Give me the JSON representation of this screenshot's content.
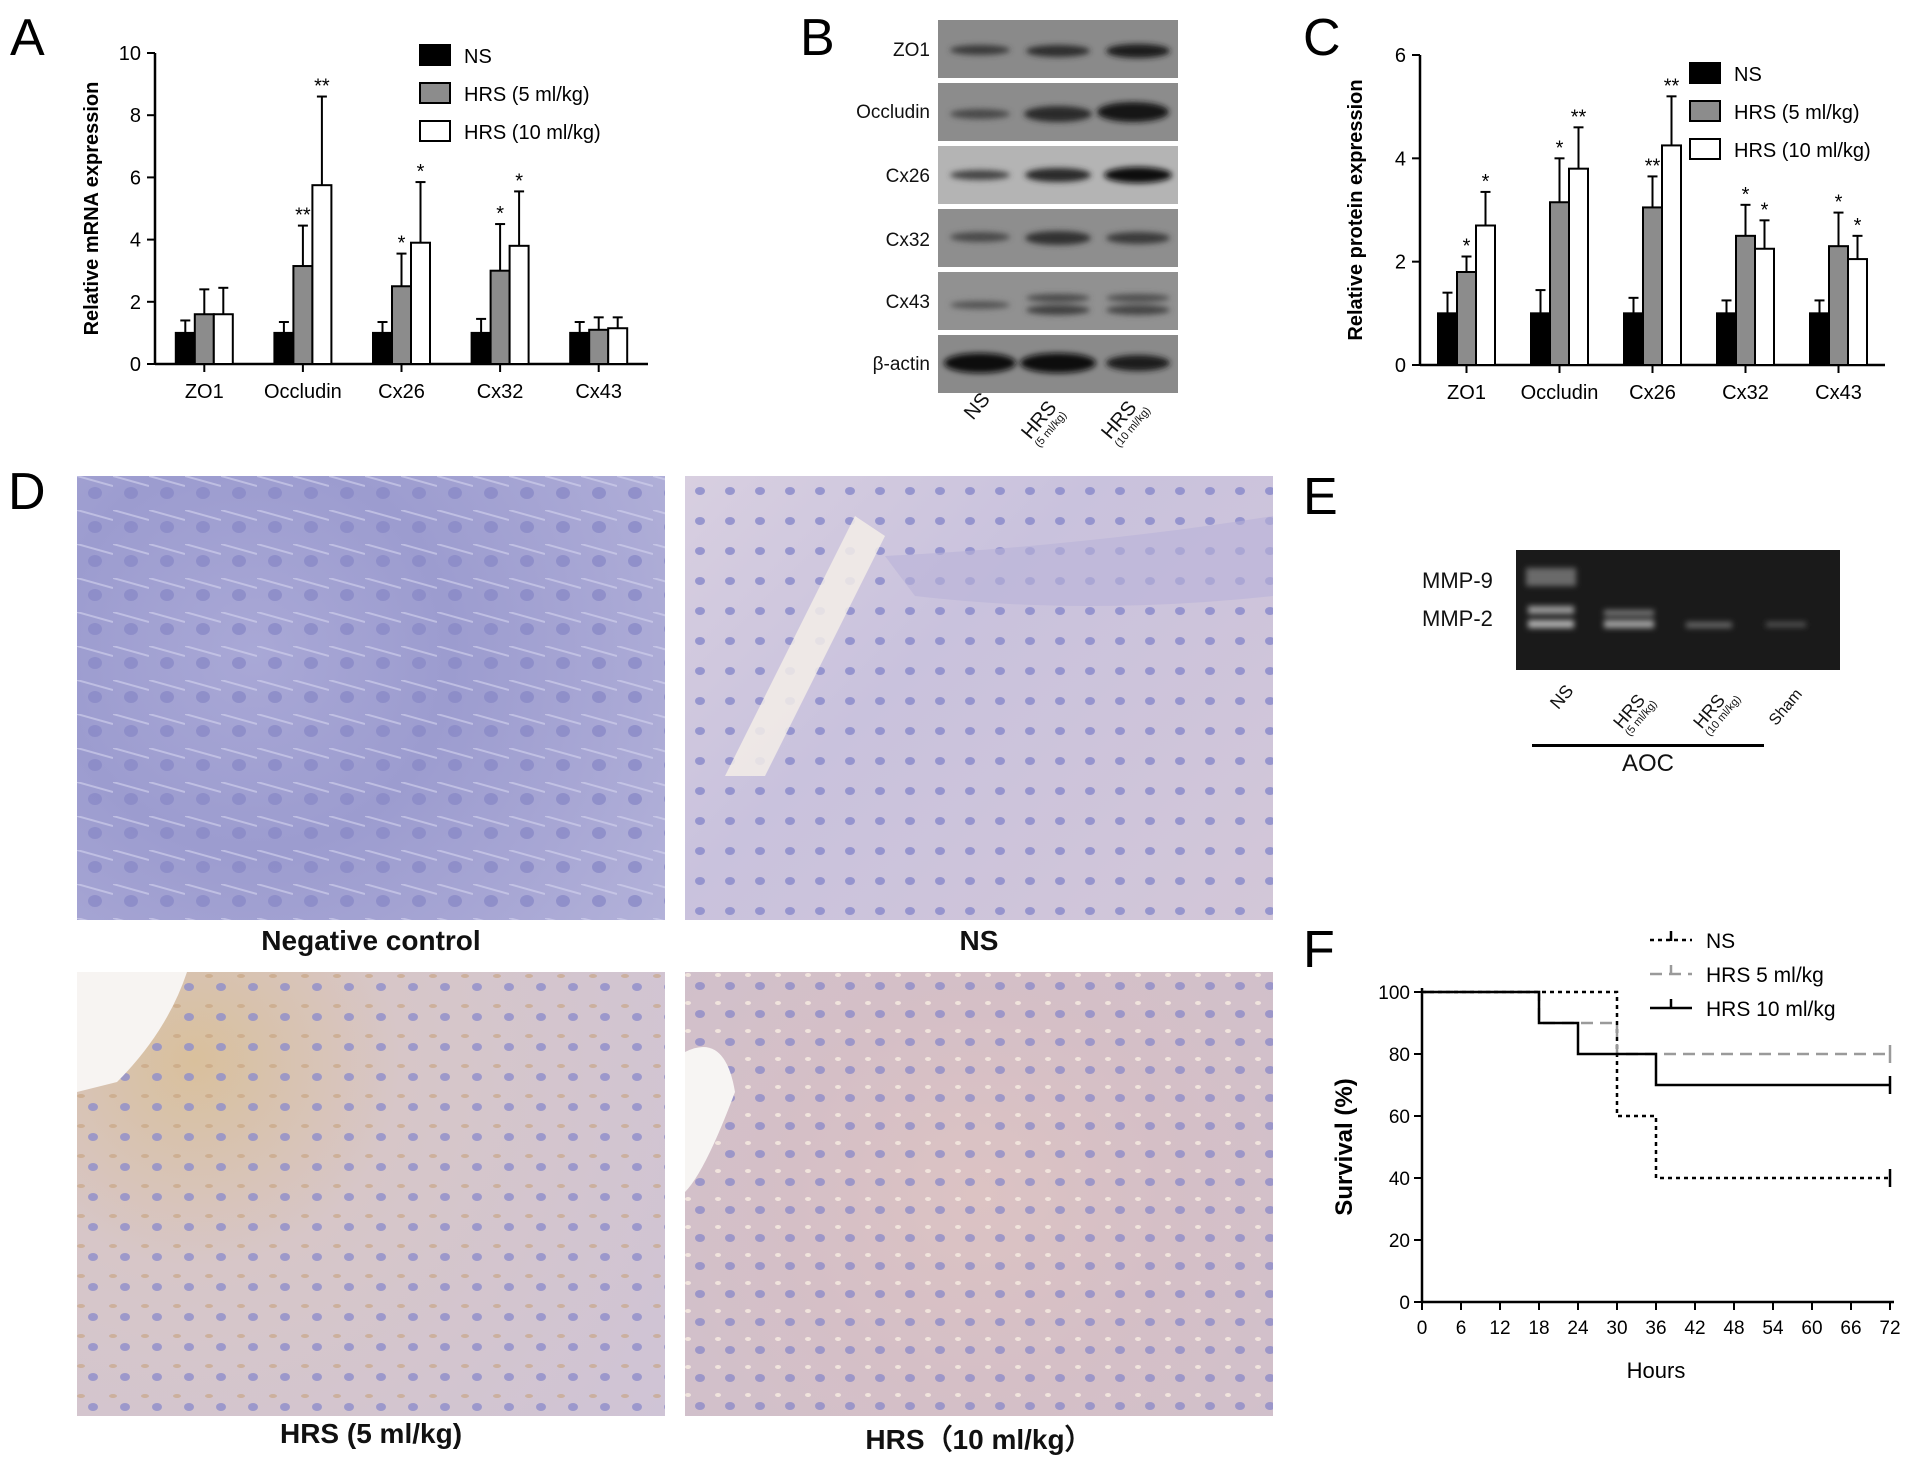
{
  "panels": {
    "a": "A",
    "b": "B",
    "c": "C",
    "d": "D",
    "e": "E",
    "f": "F"
  },
  "chart_data": [
    {
      "panel": "A",
      "type": "bar",
      "ylabel": "Relative mRNA expression",
      "xlabel": "",
      "ylim": [
        0,
        10
      ],
      "yticks": [
        "0",
        "2",
        "4",
        "6",
        "8",
        "10"
      ],
      "categories": [
        "ZO1",
        "Occludin",
        "Cx26",
        "Cx32",
        "Cx43"
      ],
      "legend_position": "top-right",
      "series": [
        {
          "name": "NS",
          "color": "#000000",
          "values": [
            1.0,
            1.0,
            1.0,
            1.0,
            1.0
          ],
          "errors": [
            0.4,
            0.35,
            0.35,
            0.45,
            0.35
          ],
          "sig": [
            "",
            "",
            "",
            "",
            ""
          ]
        },
        {
          "name": "HRS (5 ml/kg)",
          "color": "#8c8c8c",
          "values": [
            1.6,
            3.15,
            2.5,
            3.0,
            1.1
          ],
          "errors": [
            0.8,
            1.3,
            1.05,
            1.5,
            0.4
          ],
          "sig": [
            "",
            "**",
            "*",
            "*",
            ""
          ]
        },
        {
          "name": "HRS (10 ml/kg)",
          "color": "#ffffff",
          "values": [
            1.6,
            5.75,
            3.9,
            3.8,
            1.15
          ],
          "errors": [
            0.85,
            2.85,
            1.95,
            1.75,
            0.35
          ],
          "sig": [
            "",
            "**",
            "*",
            "*",
            ""
          ]
        }
      ]
    },
    {
      "panel": "C",
      "type": "bar",
      "ylabel": "Relative protein expression",
      "xlabel": "",
      "ylim": [
        0,
        6
      ],
      "yticks": [
        "0",
        "2",
        "4",
        "6"
      ],
      "categories": [
        "ZO1",
        "Occludin",
        "Cx26",
        "Cx32",
        "Cx43"
      ],
      "legend_position": "top-right",
      "series": [
        {
          "name": "NS",
          "color": "#000000",
          "values": [
            1.0,
            1.0,
            1.0,
            1.0,
            1.0
          ],
          "errors": [
            0.4,
            0.45,
            0.3,
            0.25,
            0.25
          ],
          "sig": [
            "",
            "",
            "",
            "",
            ""
          ]
        },
        {
          "name": "HRS (5 ml/kg)",
          "color": "#8c8c8c",
          "values": [
            1.8,
            3.15,
            3.05,
            2.5,
            2.3
          ],
          "errors": [
            0.3,
            0.85,
            0.6,
            0.6,
            0.65
          ],
          "sig": [
            "*",
            "*",
            "**",
            "*",
            "*"
          ]
        },
        {
          "name": "HRS (10 ml/kg)",
          "color": "#ffffff",
          "values": [
            2.7,
            3.8,
            4.25,
            2.25,
            2.05
          ],
          "errors": [
            0.65,
            0.8,
            0.95,
            0.55,
            0.45
          ],
          "sig": [
            "*",
            "**",
            "**",
            "*",
            "*"
          ]
        }
      ]
    },
    {
      "panel": "F",
      "type": "line",
      "title": "",
      "xlabel": "Hours",
      "ylabel": "Survival  (%)",
      "xlim": [
        0,
        72
      ],
      "ylim": [
        0,
        100
      ],
      "xticks": [
        "0",
        "6",
        "12",
        "18",
        "24",
        "30",
        "36",
        "42",
        "48",
        "54",
        "60",
        "66",
        "72"
      ],
      "yticks": [
        "0",
        "20",
        "40",
        "60",
        "80",
        "100"
      ],
      "legend_position": "top-right",
      "series": [
        {
          "name": "NS",
          "style": "dotted",
          "color": "#000000",
          "x": [
            0,
            30,
            30,
            36,
            36,
            72
          ],
          "y": [
            100,
            100,
            60,
            60,
            40,
            40
          ]
        },
        {
          "name": "HRS 5 ml/kg",
          "style": "dashed",
          "color": "#9a9a9a",
          "x": [
            0,
            18,
            18,
            30,
            30,
            72
          ],
          "y": [
            100,
            100,
            90,
            90,
            80,
            80
          ]
        },
        {
          "name": "HRS 10 ml/kg",
          "style": "solid",
          "color": "#000000",
          "x": [
            0,
            18,
            18,
            24,
            24,
            36,
            36,
            72
          ],
          "y": [
            100,
            100,
            90,
            90,
            80,
            80,
            70,
            70
          ]
        }
      ]
    }
  ],
  "blot_b": {
    "rows": [
      "ZO1",
      "Occludin",
      "Cx26",
      "Cx32",
      "Cx43",
      "β-actin"
    ],
    "lanes": [
      {
        "main": "NS",
        "sub": ""
      },
      {
        "main": "HRS",
        "sub": "(5 ml/kg)"
      },
      {
        "main": "HRS",
        "sub": "(10 ml/kg)"
      }
    ]
  },
  "ihc_d": {
    "captions": [
      "Negative control",
      "NS",
      "HRS (5 ml/kg)",
      "HRS（10 ml/kg）"
    ]
  },
  "zymo_e": {
    "band_labels": [
      "MMP-9",
      "MMP-2"
    ],
    "lanes": [
      {
        "main": "NS",
        "sub": ""
      },
      {
        "main": "HRS",
        "sub": "(5 ml/kg)"
      },
      {
        "main": "HRS",
        "sub": "(10 ml/kg)"
      },
      {
        "main": "Sham",
        "sub": ""
      }
    ],
    "group_label": "AOC"
  }
}
